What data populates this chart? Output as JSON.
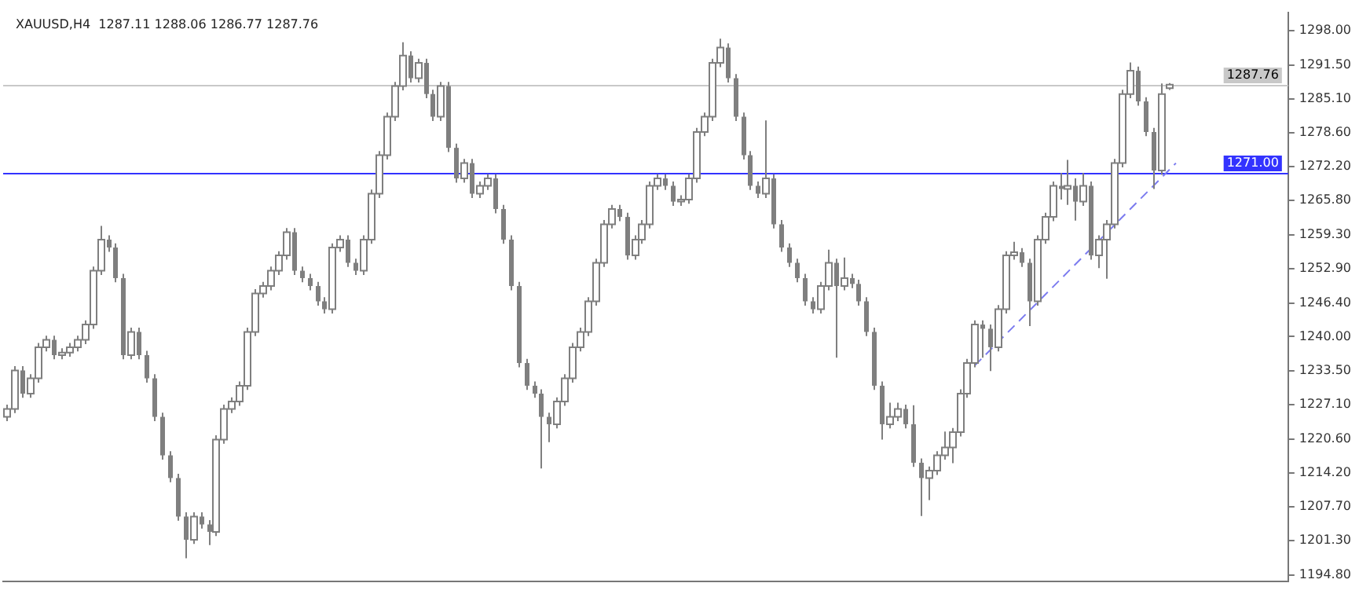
{
  "chart_data": {
    "type": "candlestick",
    "title": "XAUUSD,H4  1287.11 1288.06 1286.77 1287.76",
    "color": "#7f7f7f",
    "categories": [
      null,
      null,
      null,
      null,
      null,
      null,
      null,
      null,
      null,
      null,
      null,
      null,
      null,
      null,
      null,
      null,
      null,
      null,
      null,
      null,
      null,
      null,
      null,
      null,
      null,
      null,
      null,
      null,
      null,
      null,
      null,
      null,
      null,
      null,
      null,
      null,
      null,
      null,
      null,
      null,
      null,
      null,
      null,
      null,
      null,
      null,
      null,
      null,
      null,
      null,
      null,
      null,
      null,
      null,
      null,
      null,
      null,
      null,
      null,
      null,
      null,
      null,
      null,
      null,
      null,
      null,
      null,
      null,
      null,
      null,
      null,
      null,
      null,
      null,
      null,
      null,
      null,
      null,
      null,
      null,
      null,
      null,
      null,
      null,
      null,
      null,
      null,
      null,
      null,
      null,
      null,
      null,
      null,
      null,
      null,
      null,
      null,
      null,
      null,
      null,
      null,
      null,
      null,
      null,
      null,
      null,
      null,
      null,
      null,
      null,
      null,
      null,
      null,
      null,
      null,
      null,
      null,
      null,
      null,
      null,
      null,
      null,
      null,
      null,
      null,
      null,
      null,
      null,
      null,
      null,
      null,
      null,
      null,
      null,
      null,
      null,
      null,
      null,
      null,
      null,
      null,
      null,
      null,
      null,
      null,
      null,
      null,
      null,
      null,
      null,
      null,
      null,
      null,
      null,
      null,
      null,
      null,
      null,
      null,
      null,
      null,
      null,
      null,
      null,
      null,
      null
    ],
    "ohlc": [
      [
        1224.8,
        1227.1,
        1224.0,
        1226.3
      ],
      [
        1226.3,
        1234.4,
        1225.5,
        1233.6
      ],
      [
        1233.6,
        1234.4,
        1228.4,
        1229.2
      ],
      [
        1229.2,
        1232.9,
        1228.4,
        1232.1
      ],
      [
        1232.1,
        1238.8,
        1231.3,
        1238.0
      ],
      [
        1238.0,
        1240.2,
        1237.2,
        1239.4
      ],
      [
        1239.4,
        1240.2,
        1235.7,
        1236.5
      ],
      [
        1236.5,
        1237.8,
        1235.7,
        1237.0
      ],
      [
        1237.0,
        1238.8,
        1236.2,
        1238.0
      ],
      [
        1238.0,
        1240.2,
        1237.2,
        1239.4
      ],
      [
        1239.4,
        1243.1,
        1238.6,
        1242.3
      ],
      [
        1242.3,
        1253.3,
        1241.5,
        1252.5
      ],
      [
        1252.5,
        1261.0,
        1251.7,
        1258.4
      ],
      [
        1258.4,
        1259.2,
        1256.1,
        1256.9
      ],
      [
        1256.9,
        1257.7,
        1250.3,
        1251.1
      ],
      [
        1251.1,
        1251.9,
        1235.7,
        1236.5
      ],
      [
        1236.5,
        1241.7,
        1235.7,
        1240.9
      ],
      [
        1240.9,
        1241.7,
        1235.7,
        1236.5
      ],
      [
        1236.5,
        1237.3,
        1231.3,
        1232.1
      ],
      [
        1232.1,
        1232.9,
        1224.0,
        1224.8
      ],
      [
        1224.8,
        1225.6,
        1216.7,
        1217.5
      ],
      [
        1217.5,
        1218.3,
        1212.4,
        1213.2
      ],
      [
        1213.2,
        1214.0,
        1205.1,
        1205.9
      ],
      [
        1205.9,
        1206.7,
        1198.0,
        1201.5
      ],
      [
        1201.5,
        1206.7,
        1200.7,
        1205.9
      ],
      [
        1205.9,
        1206.7,
        1203.6,
        1204.4
      ],
      [
        1204.4,
        1205.2,
        1200.5,
        1203.0
      ],
      [
        1203.0,
        1221.3,
        1202.2,
        1220.5
      ],
      [
        1220.5,
        1227.1,
        1219.7,
        1226.3
      ],
      [
        1226.3,
        1228.5,
        1225.5,
        1227.7
      ],
      [
        1227.7,
        1231.5,
        1226.9,
        1230.7
      ],
      [
        1230.7,
        1241.7,
        1229.9,
        1240.9
      ],
      [
        1240.9,
        1249.0,
        1240.1,
        1248.2
      ],
      [
        1248.2,
        1250.4,
        1247.4,
        1249.6
      ],
      [
        1249.6,
        1253.3,
        1248.8,
        1252.5
      ],
      [
        1252.5,
        1256.2,
        1251.7,
        1255.4
      ],
      [
        1255.4,
        1260.6,
        1254.6,
        1259.8
      ],
      [
        1259.8,
        1260.6,
        1251.7,
        1252.5
      ],
      [
        1252.5,
        1253.3,
        1250.3,
        1251.1
      ],
      [
        1251.1,
        1251.9,
        1248.8,
        1249.6
      ],
      [
        1249.6,
        1250.4,
        1245.9,
        1246.7
      ],
      [
        1246.7,
        1247.5,
        1244.4,
        1245.2
      ],
      [
        1245.2,
        1257.7,
        1244.4,
        1256.9
      ],
      [
        1256.9,
        1259.2,
        1256.1,
        1258.4
      ],
      [
        1258.4,
        1259.2,
        1253.2,
        1254.0
      ],
      [
        1254.0,
        1254.8,
        1251.7,
        1252.5
      ],
      [
        1252.5,
        1259.2,
        1251.7,
        1258.4
      ],
      [
        1258.4,
        1267.9,
        1257.6,
        1267.1
      ],
      [
        1267.1,
        1275.2,
        1266.3,
        1274.4
      ],
      [
        1274.4,
        1282.5,
        1273.6,
        1281.7
      ],
      [
        1281.7,
        1288.3,
        1280.9,
        1287.5
      ],
      [
        1287.5,
        1295.8,
        1286.7,
        1293.3
      ],
      [
        1293.3,
        1294.1,
        1288.2,
        1289.0
      ],
      [
        1289.0,
        1292.7,
        1288.2,
        1291.9
      ],
      [
        1291.9,
        1292.7,
        1285.2,
        1286.0
      ],
      [
        1286.0,
        1286.8,
        1280.9,
        1281.7
      ],
      [
        1281.7,
        1288.3,
        1280.9,
        1287.5
      ],
      [
        1287.5,
        1288.3,
        1275.0,
        1275.8
      ],
      [
        1275.8,
        1276.6,
        1269.2,
        1270.0
      ],
      [
        1270.0,
        1273.7,
        1269.2,
        1272.9
      ],
      [
        1272.9,
        1273.7,
        1266.3,
        1267.1
      ],
      [
        1267.1,
        1269.4,
        1266.3,
        1268.6
      ],
      [
        1268.6,
        1270.8,
        1267.8,
        1270.0
      ],
      [
        1270.0,
        1270.8,
        1263.4,
        1264.2
      ],
      [
        1264.2,
        1265.0,
        1257.6,
        1258.4
      ],
      [
        1258.4,
        1259.2,
        1248.8,
        1249.6
      ],
      [
        1249.6,
        1250.4,
        1234.2,
        1235.0
      ],
      [
        1235.0,
        1235.8,
        1229.9,
        1230.7
      ],
      [
        1230.7,
        1231.5,
        1228.4,
        1229.2
      ],
      [
        1229.2,
        1230.0,
        1215.0,
        1224.8
      ],
      [
        1224.8,
        1225.6,
        1220.0,
        1223.4
      ],
      [
        1223.4,
        1228.5,
        1222.6,
        1227.7
      ],
      [
        1227.7,
        1232.9,
        1226.9,
        1232.1
      ],
      [
        1232.1,
        1238.8,
        1231.3,
        1238.0
      ],
      [
        1238.0,
        1241.7,
        1237.2,
        1240.9
      ],
      [
        1240.9,
        1247.5,
        1240.1,
        1246.7
      ],
      [
        1246.7,
        1254.8,
        1245.9,
        1254.0
      ],
      [
        1254.0,
        1262.1,
        1253.2,
        1261.3
      ],
      [
        1261.3,
        1265.0,
        1260.5,
        1264.2
      ],
      [
        1264.2,
        1265.0,
        1261.9,
        1262.7
      ],
      [
        1262.7,
        1263.5,
        1254.6,
        1255.4
      ],
      [
        1255.4,
        1259.2,
        1254.6,
        1258.4
      ],
      [
        1258.4,
        1262.1,
        1257.6,
        1261.3
      ],
      [
        1261.3,
        1269.4,
        1260.5,
        1268.6
      ],
      [
        1268.6,
        1270.8,
        1267.8,
        1270.0
      ],
      [
        1270.0,
        1270.8,
        1267.8,
        1268.6
      ],
      [
        1268.6,
        1269.4,
        1264.8,
        1265.6
      ],
      [
        1265.6,
        1266.8,
        1264.8,
        1266.0
      ],
      [
        1266.0,
        1270.8,
        1265.2,
        1270.0
      ],
      [
        1270.0,
        1279.6,
        1269.2,
        1278.8
      ],
      [
        1278.8,
        1282.5,
        1278.0,
        1281.7
      ],
      [
        1281.7,
        1292.7,
        1280.9,
        1291.9
      ],
      [
        1291.9,
        1296.5,
        1291.1,
        1294.8
      ],
      [
        1294.8,
        1295.6,
        1288.2,
        1289.0
      ],
      [
        1289.0,
        1289.8,
        1280.9,
        1281.7
      ],
      [
        1281.7,
        1282.5,
        1273.6,
        1274.4
      ],
      [
        1274.4,
        1275.2,
        1267.8,
        1268.6
      ],
      [
        1268.6,
        1269.4,
        1266.3,
        1267.1
      ],
      [
        1267.1,
        1281.0,
        1266.3,
        1270.0
      ],
      [
        1270.0,
        1270.8,
        1260.5,
        1261.3
      ],
      [
        1261.3,
        1262.1,
        1256.1,
        1256.9
      ],
      [
        1256.9,
        1257.7,
        1253.2,
        1254.0
      ],
      [
        1254.0,
        1254.8,
        1250.3,
        1251.1
      ],
      [
        1251.1,
        1251.9,
        1245.9,
        1246.7
      ],
      [
        1246.7,
        1247.5,
        1244.4,
        1245.2
      ],
      [
        1245.2,
        1250.4,
        1244.4,
        1249.6
      ],
      [
        1249.6,
        1256.5,
        1248.8,
        1254.0
      ],
      [
        1254.0,
        1254.8,
        1236.0,
        1249.6
      ],
      [
        1249.6,
        1255.0,
        1248.8,
        1251.1
      ],
      [
        1251.1,
        1251.9,
        1249.2,
        1250.0
      ],
      [
        1250.0,
        1250.8,
        1245.9,
        1246.7
      ],
      [
        1246.7,
        1247.5,
        1240.1,
        1240.9
      ],
      [
        1240.9,
        1241.7,
        1229.9,
        1230.7
      ],
      [
        1230.7,
        1231.5,
        1220.5,
        1223.4
      ],
      [
        1223.4,
        1227.5,
        1222.6,
        1224.8
      ],
      [
        1224.8,
        1227.5,
        1224.0,
        1226.3
      ],
      [
        1226.3,
        1227.1,
        1222.6,
        1223.4
      ],
      [
        1223.4,
        1227.0,
        1215.3,
        1216.1
      ],
      [
        1216.1,
        1216.9,
        1206.0,
        1213.2
      ],
      [
        1213.2,
        1215.4,
        1209.0,
        1214.6
      ],
      [
        1214.6,
        1218.3,
        1213.8,
        1217.5
      ],
      [
        1217.5,
        1222.0,
        1216.7,
        1219.0
      ],
      [
        1219.0,
        1222.7,
        1216.0,
        1221.9
      ],
      [
        1221.9,
        1230.0,
        1221.1,
        1229.2
      ],
      [
        1229.2,
        1235.8,
        1228.4,
        1235.0
      ],
      [
        1235.0,
        1243.1,
        1234.2,
        1242.3
      ],
      [
        1242.3,
        1243.1,
        1236.0,
        1241.5
      ],
      [
        1241.5,
        1242.3,
        1233.5,
        1238.0
      ],
      [
        1238.0,
        1246.0,
        1237.2,
        1245.2
      ],
      [
        1245.2,
        1256.2,
        1244.4,
        1255.4
      ],
      [
        1255.4,
        1258.0,
        1254.6,
        1256.0
      ],
      [
        1256.0,
        1256.8,
        1253.2,
        1254.0
      ],
      [
        1254.0,
        1254.8,
        1242.0,
        1246.7
      ],
      [
        1246.7,
        1259.2,
        1245.9,
        1258.4
      ],
      [
        1258.4,
        1263.5,
        1257.6,
        1262.7
      ],
      [
        1262.7,
        1269.4,
        1261.9,
        1268.6
      ],
      [
        1268.6,
        1271.0,
        1266.0,
        1268.0
      ],
      [
        1268.0,
        1273.5,
        1265.0,
        1268.6
      ],
      [
        1268.6,
        1270.0,
        1262.0,
        1265.6
      ],
      [
        1265.6,
        1271.0,
        1264.8,
        1268.6
      ],
      [
        1268.6,
        1269.4,
        1254.6,
        1255.4
      ],
      [
        1255.4,
        1259.2,
        1253.0,
        1258.4
      ],
      [
        1258.4,
        1262.1,
        1251.0,
        1261.3
      ],
      [
        1261.3,
        1273.7,
        1260.5,
        1272.9
      ],
      [
        1272.9,
        1286.8,
        1272.1,
        1286.0
      ],
      [
        1286.0,
        1292.0,
        1285.2,
        1290.4
      ],
      [
        1290.4,
        1291.2,
        1283.8,
        1284.6
      ],
      [
        1284.6,
        1285.4,
        1278.0,
        1278.8
      ],
      [
        1278.8,
        1279.6,
        1268.0,
        1271.5
      ],
      [
        1271.5,
        1288.0,
        1270.7,
        1286.0
      ],
      [
        1287.11,
        1288.06,
        1286.77,
        1287.76
      ],
      null,
      null,
      null,
      null,
      null,
      null,
      null,
      null,
      null,
      null,
      null,
      null,
      null,
      null,
      null
    ],
    "series": [
      {
        "type": "line",
        "color": "#7b7bef",
        "line_style": "dashed",
        "values": [
          null,
          null,
          null,
          null,
          null,
          null,
          null,
          null,
          null,
          null,
          null,
          null,
          null,
          null,
          null,
          null,
          null,
          null,
          null,
          null,
          null,
          null,
          null,
          null,
          null,
          null,
          null,
          null,
          null,
          null,
          null,
          null,
          null,
          null,
          null,
          null,
          null,
          null,
          null,
          null,
          null,
          null,
          null,
          null,
          null,
          null,
          null,
          null,
          null,
          null,
          null,
          null,
          null,
          null,
          null,
          null,
          null,
          null,
          null,
          null,
          null,
          null,
          null,
          null,
          null,
          null,
          null,
          null,
          null,
          null,
          null,
          null,
          null,
          null,
          null,
          null,
          null,
          null,
          null,
          null,
          null,
          null,
          null,
          null,
          null,
          null,
          null,
          null,
          null,
          null,
          null,
          null,
          null,
          null,
          null,
          null,
          null,
          null,
          null,
          null,
          null,
          null,
          null,
          null,
          null,
          null,
          null,
          null,
          null,
          null,
          null,
          null,
          null,
          null,
          null,
          null,
          null,
          null,
          null,
          null,
          null,
          null,
          null,
          null,
          null,
          1234.5,
          null,
          null,
          null,
          null,
          null,
          null,
          null,
          null,
          null,
          null,
          null,
          null,
          null,
          null,
          null,
          null,
          null,
          null,
          null,
          null,
          null,
          null,
          null,
          null,
          null,
          1272.9,
          null,
          null,
          null,
          null,
          null,
          null,
          null,
          null,
          null,
          null,
          null,
          null,
          null,
          null
        ]
      }
    ],
    "ylim": [
      1193.6,
      1301.5
    ],
    "yticks": [
      {
        "value": 1298,
        "label": "1298.00"
      },
      {
        "value": 1291.5,
        "label": "1291.50"
      },
      {
        "value": 1285.1,
        "label": "1285.10"
      },
      {
        "value": 1278.6,
        "label": "1278.60"
      },
      {
        "value": 1272.2,
        "label": "1272.20"
      },
      {
        "value": 1265.8,
        "label": "1265.80"
      },
      {
        "value": 1259.3,
        "label": "1259.30"
      },
      {
        "value": 1252.9,
        "label": "1252.90"
      },
      {
        "value": 1246.4,
        "label": "1246.40"
      },
      {
        "value": 1240,
        "label": "1240.00"
      },
      {
        "value": 1233.5,
        "label": "1233.50"
      },
      {
        "value": 1227.1,
        "label": "1227.10"
      },
      {
        "value": 1220.6,
        "label": "1220.60"
      },
      {
        "value": 1214.2,
        "label": "1214.20"
      },
      {
        "value": 1207.7,
        "label": "1207.70"
      },
      {
        "value": 1201.3,
        "label": "1201.30"
      },
      {
        "value": 1194.8,
        "label": "1194.80"
      }
    ],
    "ref_lines": [
      {
        "axis": "y",
        "value": 1287.76,
        "label": "1287.76",
        "color": "#c8c8c8"
      },
      {
        "axis": "y",
        "value": 1271,
        "label": "1271.00",
        "color": "#3333ff"
      }
    ],
    "tick_labels": "y"
  }
}
